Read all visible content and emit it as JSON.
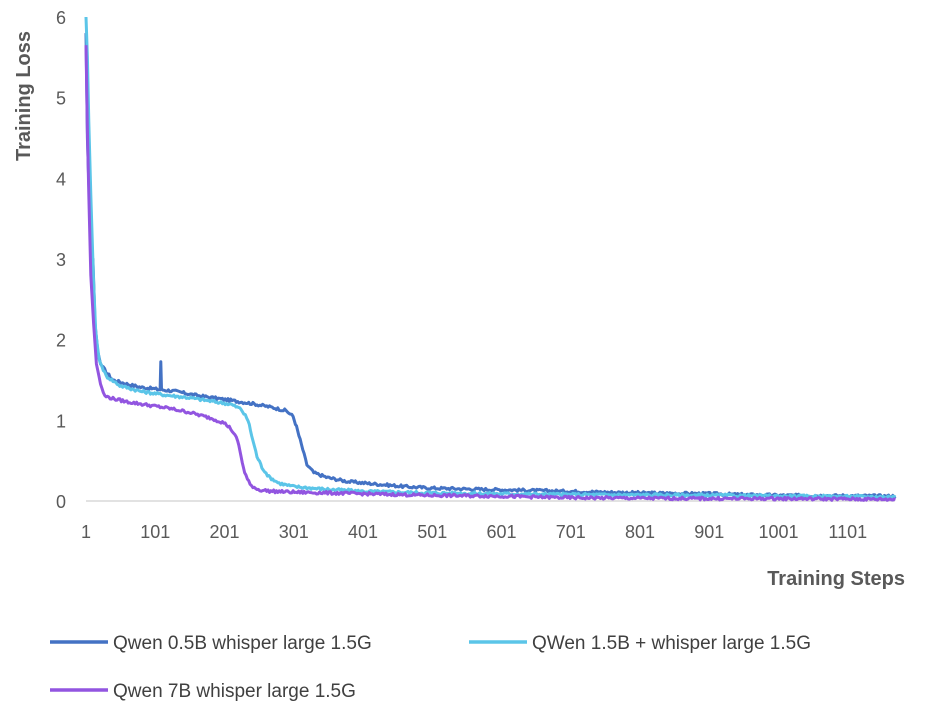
{
  "chart_data": {
    "type": "line",
    "title": "",
    "xlabel": "Training Steps",
    "ylabel": "Training Loss",
    "xlim": [
      1,
      1172
    ],
    "ylim": [
      0,
      6
    ],
    "x_ticks": [
      1,
      101,
      201,
      301,
      401,
      501,
      601,
      701,
      801,
      901,
      1001,
      1101
    ],
    "y_ticks": [
      0,
      1,
      2,
      3,
      4,
      5,
      6
    ],
    "grid": false,
    "legend_position": "bottom",
    "series": [
      {
        "name": "Qwen 0.5B whisper large 1.5G",
        "color": "#4472C4",
        "points": [
          [
            1,
            5.8
          ],
          [
            3,
            4.5
          ],
          [
            6,
            3.7
          ],
          [
            9,
            3.0
          ],
          [
            11,
            3.0
          ],
          [
            14,
            2.2
          ],
          [
            18,
            1.85
          ],
          [
            22,
            1.7
          ],
          [
            30,
            1.6
          ],
          [
            40,
            1.5
          ],
          [
            60,
            1.45
          ],
          [
            80,
            1.41
          ],
          [
            100,
            1.39
          ],
          [
            108,
            1.38
          ],
          [
            109,
            1.73
          ],
          [
            110,
            1.38
          ],
          [
            130,
            1.36
          ],
          [
            160,
            1.31
          ],
          [
            200,
            1.26
          ],
          [
            240,
            1.21
          ],
          [
            270,
            1.16
          ],
          [
            290,
            1.12
          ],
          [
            300,
            1.05
          ],
          [
            305,
            0.92
          ],
          [
            312,
            0.7
          ],
          [
            320,
            0.45
          ],
          [
            330,
            0.35
          ],
          [
            350,
            0.29
          ],
          [
            380,
            0.24
          ],
          [
            420,
            0.21
          ],
          [
            460,
            0.18
          ],
          [
            500,
            0.16
          ],
          [
            600,
            0.14
          ],
          [
            700,
            0.12
          ],
          [
            800,
            0.1
          ],
          [
            900,
            0.09
          ],
          [
            940,
            0.08
          ],
          [
            1000,
            0.07
          ],
          [
            1100,
            0.065
          ],
          [
            1170,
            0.06
          ]
        ]
      },
      {
        "name": "QWen 1.5B + whisper large 1.5G",
        "color": "#5BC5E8",
        "points": [
          [
            1,
            6.0
          ],
          [
            3,
            5.5
          ],
          [
            5,
            4.7
          ],
          [
            8,
            3.8
          ],
          [
            12,
            2.7
          ],
          [
            15,
            2.1
          ],
          [
            20,
            1.75
          ],
          [
            30,
            1.55
          ],
          [
            50,
            1.43
          ],
          [
            80,
            1.36
          ],
          [
            110,
            1.32
          ],
          [
            150,
            1.28
          ],
          [
            180,
            1.24
          ],
          [
            210,
            1.2
          ],
          [
            225,
            1.14
          ],
          [
            235,
            1.0
          ],
          [
            242,
            0.75
          ],
          [
            248,
            0.55
          ],
          [
            255,
            0.42
          ],
          [
            265,
            0.3
          ],
          [
            280,
            0.22
          ],
          [
            300,
            0.18
          ],
          [
            340,
            0.15
          ],
          [
            400,
            0.12
          ],
          [
            500,
            0.1
          ],
          [
            600,
            0.09
          ],
          [
            700,
            0.08
          ],
          [
            800,
            0.075
          ],
          [
            900,
            0.07
          ],
          [
            1000,
            0.06
          ],
          [
            1100,
            0.055
          ],
          [
            1170,
            0.05
          ]
        ]
      },
      {
        "name": "Qwen 7B whisper large 1.5G",
        "color": "#9255E0",
        "points": [
          [
            1,
            5.65
          ],
          [
            3,
            4.6
          ],
          [
            5,
            3.8
          ],
          [
            8,
            2.8
          ],
          [
            12,
            2.2
          ],
          [
            16,
            1.7
          ],
          [
            22,
            1.45
          ],
          [
            28,
            1.3
          ],
          [
            40,
            1.27
          ],
          [
            60,
            1.23
          ],
          [
            90,
            1.19
          ],
          [
            120,
            1.15
          ],
          [
            150,
            1.1
          ],
          [
            180,
            1.03
          ],
          [
            200,
            0.97
          ],
          [
            210,
            0.9
          ],
          [
            220,
            0.75
          ],
          [
            225,
            0.55
          ],
          [
            230,
            0.35
          ],
          [
            238,
            0.2
          ],
          [
            250,
            0.14
          ],
          [
            270,
            0.12
          ],
          [
            300,
            0.11
          ],
          [
            400,
            0.09
          ],
          [
            500,
            0.07
          ],
          [
            600,
            0.06
          ],
          [
            700,
            0.04
          ],
          [
            800,
            0.035
          ],
          [
            900,
            0.03
          ],
          [
            1000,
            0.03
          ],
          [
            1100,
            0.025
          ],
          [
            1170,
            0.02
          ]
        ]
      }
    ]
  }
}
